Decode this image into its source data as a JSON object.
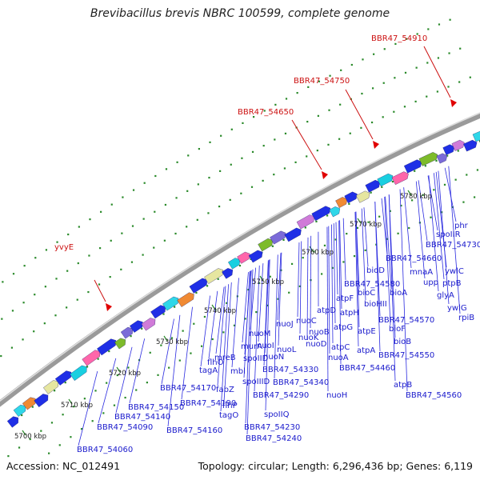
{
  "title": "Brevibacillus brevis NBRC 100599, complete genome",
  "accession": "Accession: NC_012491",
  "topology": "Topology: circular; Length: 6,296,436 bp; Genes: 6,119",
  "ticks": [
    "5700 kbp",
    "5710 kbp",
    "5720 kbp",
    "5730 kbp",
    "5740 kbp",
    "5750 kbp",
    "5760 kbp",
    "5770 kbp",
    "5780 kbp"
  ],
  "red_labels": [
    "yvyE",
    "BBR47_54650",
    "BBR47_54750",
    "BBR47_54910"
  ],
  "gene_labels": [
    "BBR47_54060",
    "BBR47_54090",
    "BBR47_54140",
    "BBR47_54150",
    "BBR47_54160",
    "BBR47_54170",
    "tagA",
    "tagO",
    "mbl",
    "flhO",
    "fabZ",
    "flhP",
    "BBR47_54190",
    "mreB",
    "spoIID",
    "spoIIID",
    "murA",
    "spoIIQ",
    "BBR47_54230",
    "BBR47_54240",
    "nuoM",
    "nuoN",
    "nuoL",
    "BBR47_54330",
    "BBR47_54290",
    "nuoJ",
    "nuoK",
    "BBR47_54340",
    "nuoI",
    "nuoC",
    "nuoD",
    "nuoB",
    "nuoA",
    "nuoH",
    "atpD",
    "atpC",
    "atpF",
    "atpG",
    "atpE",
    "atpH",
    "BBR47_54460",
    "atpA",
    "atpB",
    "BBR47_54550",
    "BBR47_54560",
    "bioHII",
    "bioF",
    "bioB",
    "BBR47_54570",
    "BBR47_54580",
    "bioC",
    "bioA",
    "bioD",
    "BBR47_54660",
    "mnaA",
    "upp",
    "ptpB",
    "glyA",
    "ywlC",
    "ywlG",
    "rpiB",
    "BBR47_54730",
    "spoIIR",
    "phr"
  ]
}
